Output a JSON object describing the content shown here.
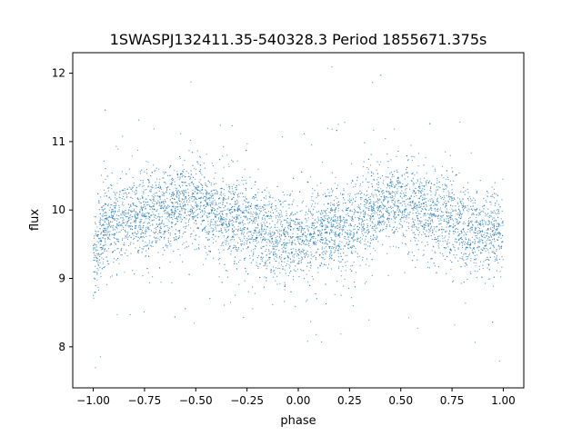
{
  "chart_data": {
    "type": "scatter",
    "title": "1SWASPJ132411.35-540328.3 Period 1855671.375s",
    "xlabel": "phase",
    "ylabel": "flux",
    "xlim": [
      -1.1,
      1.1
    ],
    "ylim": [
      7.4,
      12.3
    ],
    "xticks": [
      -1.0,
      -0.75,
      -0.5,
      -0.25,
      0.0,
      0.25,
      0.5,
      0.75,
      1.0
    ],
    "xtick_labels": [
      "−1.00",
      "−0.75",
      "−0.50",
      "−0.25",
      "0.00",
      "0.25",
      "0.50",
      "0.75",
      "1.00"
    ],
    "yticks": [
      8,
      9,
      10,
      11,
      12
    ],
    "ytick_labels": [
      "8",
      "9",
      "10",
      "11",
      "12"
    ],
    "grid": false,
    "legend": "none",
    "marker_color": "#1f77b4",
    "series": [
      {
        "x_range": [
          -1.0,
          1.0
        ],
        "trend_points": [
          {
            "x": -1.0,
            "y": 9.2
          },
          {
            "x": -0.95,
            "y": 9.75
          },
          {
            "x": -0.75,
            "y": 9.95
          },
          {
            "x": -0.55,
            "y": 10.1
          },
          {
            "x": -0.4,
            "y": 9.95
          },
          {
            "x": -0.25,
            "y": 9.8
          },
          {
            "x": -0.1,
            "y": 9.6
          },
          {
            "x": 0.0,
            "y": 9.55
          },
          {
            "x": 0.1,
            "y": 9.65
          },
          {
            "x": 0.25,
            "y": 9.8
          },
          {
            "x": 0.45,
            "y": 10.1
          },
          {
            "x": 0.6,
            "y": 10.0
          },
          {
            "x": 0.75,
            "y": 9.8
          },
          {
            "x": 0.9,
            "y": 9.65
          },
          {
            "x": 1.0,
            "y": 9.65
          }
        ],
        "flux_min": 7.6,
        "flux_max": 12.1
      }
    ]
  }
}
